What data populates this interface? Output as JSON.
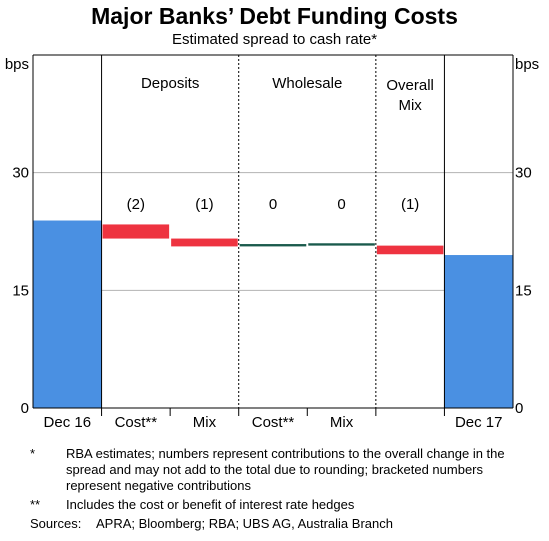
{
  "header": {
    "title": "Major Banks’ Debt Funding Costs",
    "subtitle": "Estimated spread to cash rate*"
  },
  "chart_data": {
    "type": "bar",
    "subtype": "waterfall",
    "y_unit_left": "bps",
    "y_unit_right": "bps",
    "ylim": [
      0,
      45
    ],
    "yticks": [
      "0",
      "15",
      "30"
    ],
    "categories": [
      "Dec 16",
      "Cost**",
      "Mix",
      "Cost**",
      "Mix",
      "",
      "Dec 17"
    ],
    "groups": [
      {
        "label": "Deposits"
      },
      {
        "label": "Wholesale"
      },
      {
        "label_line1": "Overall",
        "label_line2": "Mix"
      }
    ],
    "bars": [
      {
        "category": "Dec 16",
        "kind": "total",
        "start": 0,
        "end": 23.9
      },
      {
        "category": "Cost**",
        "group": "Deposits",
        "kind": "change",
        "start": 23.4,
        "end": 21.6,
        "label": "(2)"
      },
      {
        "category": "Mix",
        "group": "Deposits",
        "kind": "change",
        "start": 21.6,
        "end": 20.6,
        "label": "(1)"
      },
      {
        "category": "Cost**",
        "group": "Wholesale",
        "kind": "change",
        "start": 20.9,
        "end": 20.6,
        "label": "0"
      },
      {
        "category": "Mix",
        "group": "Wholesale",
        "kind": "change",
        "start": 21.0,
        "end": 20.7,
        "label": "0"
      },
      {
        "category": "",
        "group": "Overall Mix",
        "kind": "change",
        "start": 20.7,
        "end": 19.6,
        "label": "(1)"
      },
      {
        "category": "Dec 17",
        "kind": "total",
        "start": 0,
        "end": 19.5
      }
    ],
    "colors": {
      "total": "#4a90e2",
      "negative": "#ee3340",
      "neutral": "#1a5a4c"
    }
  },
  "notes": [
    {
      "mark": "*",
      "text": "RBA estimates; numbers represent contributions to the overall change in the spread and may not add to the total due to rounding; bracketed numbers represent negative contributions"
    },
    {
      "mark": "**",
      "text": "Includes the cost or benefit of interest rate hedges"
    }
  ],
  "sources": {
    "label": "Sources:",
    "text": "APRA; Bloomberg; RBA; UBS AG, Australia Branch"
  }
}
